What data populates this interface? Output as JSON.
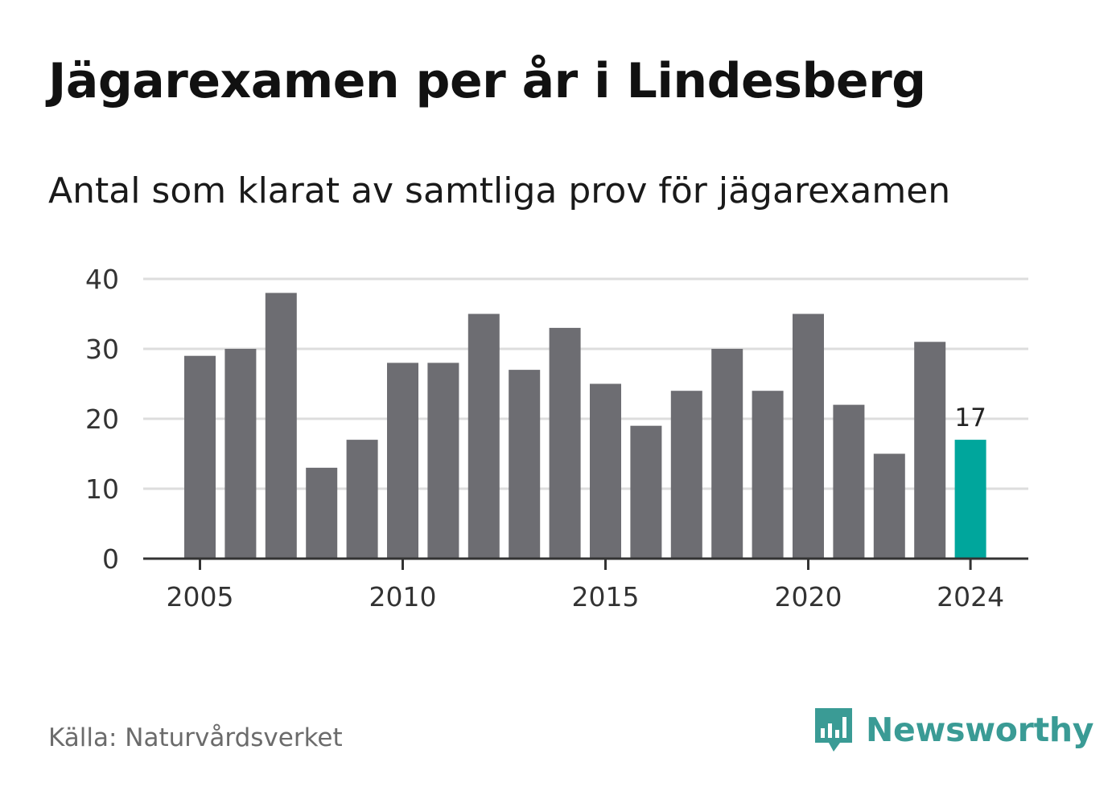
{
  "title": "Jägarexamen per år i Lindesberg",
  "subtitle": "Antal som klarat av samtliga prov för jägarexamen",
  "source": "Källa: Naturvårdsverket",
  "brand": {
    "name": "Newsworthy",
    "icon": "newsworthy-logo-icon"
  },
  "colors": {
    "bar": "#6d6d72",
    "highlight": "#00a69c",
    "grid": "#dddddd",
    "axis": "#333333",
    "text": "#333333"
  },
  "chart_data": {
    "type": "bar",
    "x": [
      2005,
      2006,
      2007,
      2008,
      2009,
      2010,
      2011,
      2012,
      2013,
      2014,
      2015,
      2016,
      2017,
      2018,
      2019,
      2020,
      2021,
      2022,
      2023,
      2024
    ],
    "values": [
      29,
      30,
      38,
      13,
      17,
      28,
      28,
      35,
      27,
      33,
      25,
      19,
      24,
      30,
      24,
      35,
      22,
      15,
      31,
      17
    ],
    "x_tick_labels": [
      "2005",
      "2010",
      "2015",
      "2020",
      "2024"
    ],
    "y_ticks": [
      0,
      10,
      20,
      30,
      40
    ],
    "ylim": [
      0,
      40
    ],
    "highlight": {
      "x": 2024,
      "label": "17"
    },
    "grid": true
  }
}
